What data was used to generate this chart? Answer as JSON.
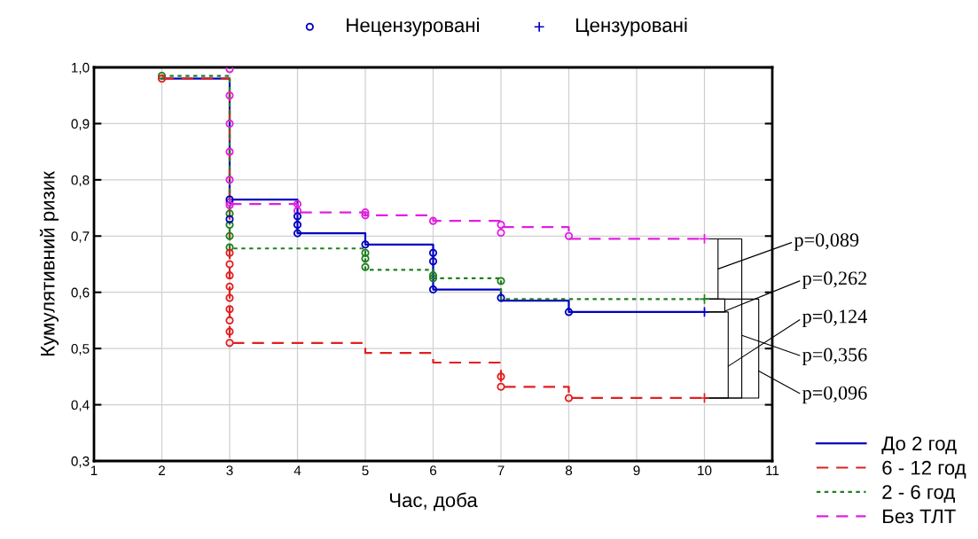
{
  "chart_data": {
    "type": "step",
    "xlabel": "Час, доба",
    "ylabel": "Кумулятивний ризик",
    "xlim": [
      1,
      11
    ],
    "xticks": [
      1,
      2,
      3,
      4,
      5,
      6,
      7,
      8,
      9,
      10,
      11
    ],
    "ylim": [
      0.3,
      1.0
    ],
    "yticks": [
      {
        "value": 0.3,
        "label": "0,3"
      },
      {
        "value": 0.4,
        "label": "0,4"
      },
      {
        "value": 0.5,
        "label": "0,5"
      },
      {
        "value": 0.6,
        "label": "0,6"
      },
      {
        "value": 0.7,
        "label": "0,7"
      },
      {
        "value": 0.8,
        "label": "0,8"
      },
      {
        "value": 0.9,
        "label": "0,9"
      },
      {
        "value": 1.0,
        "label": "1,0"
      }
    ],
    "grid": true,
    "legend": "bottom right",
    "series": [
      {
        "name": "До 2 год",
        "color": "#0000c0",
        "line_style": "solid",
        "x": [
          2,
          3,
          4,
          5,
          6,
          7,
          8,
          10
        ],
        "values": [
          0.98,
          0.765,
          0.705,
          0.685,
          0.605,
          0.585,
          0.565,
          0.565
        ]
      },
      {
        "name": "6 - 12 год",
        "color": "#e02020",
        "line_style": "dashed",
        "x": [
          2,
          3,
          5,
          6,
          7,
          8,
          10
        ],
        "values": [
          0.98,
          0.51,
          0.492,
          0.475,
          0.432,
          0.412,
          0.412
        ]
      },
      {
        "name": "2 - 6 год",
        "color": "#208020",
        "line_style": "dotted",
        "x": [
          2,
          3,
          5,
          6,
          7,
          10
        ],
        "values": [
          0.985,
          0.678,
          0.64,
          0.625,
          0.588,
          0.588
        ]
      },
      {
        "name": "Без ТЛТ",
        "color": "#e020e0",
        "line_style": "dashed",
        "x": [
          3,
          4,
          5,
          6,
          7,
          8,
          10
        ],
        "values": [
          0.757,
          0.742,
          0.737,
          0.727,
          0.716,
          0.695,
          0.695
        ]
      },
      {
        "name": "Нецензуровані",
        "type": "scatter",
        "marker": "circle",
        "color": "#0000c0",
        "x": [
          2,
          2,
          3,
          3,
          3,
          3,
          3,
          3,
          3,
          3,
          3,
          3,
          3,
          3,
          3,
          3,
          3,
          3,
          3,
          3,
          3,
          3,
          3,
          3,
          4,
          4,
          4,
          4,
          4,
          5,
          5,
          5,
          5,
          5,
          5,
          6,
          6,
          6,
          6,
          6,
          6,
          7,
          7,
          7,
          7,
          7,
          7,
          8,
          8,
          8
        ],
        "values": [
          0.985,
          0.98,
          0.997,
          0.95,
          0.9,
          0.85,
          0.8,
          0.76,
          0.74,
          0.72,
          0.7,
          0.68,
          0.67,
          0.65,
          0.63,
          0.61,
          0.59,
          0.57,
          0.55,
          0.53,
          0.51,
          0.765,
          0.755,
          0.73,
          0.757,
          0.745,
          0.735,
          0.72,
          0.705,
          0.742,
          0.737,
          0.685,
          0.67,
          0.66,
          0.645,
          0.727,
          0.67,
          0.655,
          0.605,
          0.625,
          0.63,
          0.72,
          0.706,
          0.62,
          0.59,
          0.45,
          0.432,
          0.7,
          0.565,
          0.412
        ],
        "colors": [
          "#208020",
          "#e02020",
          "#e020e0",
          "#e020e0",
          "#e020e0",
          "#e020e0",
          "#e020e0",
          "#e020e0",
          "#208020",
          "#208020",
          "#208020",
          "#208020",
          "#e02020",
          "#e02020",
          "#e02020",
          "#e02020",
          "#e02020",
          "#e02020",
          "#e02020",
          "#e02020",
          "#e02020",
          "#0000c0",
          "#e020e0",
          "#0000c0",
          "#e020e0",
          "#e020e0",
          "#0000c0",
          "#0000c0",
          "#0000c0",
          "#e020e0",
          "#e020e0",
          "#0000c0",
          "#208020",
          "#208020",
          "#208020",
          "#e020e0",
          "#0000c0",
          "#0000c0",
          "#0000c0",
          "#208020",
          "#208020",
          "#e020e0",
          "#e020e0",
          "#208020",
          "#0000c0",
          "#e02020",
          "#e02020",
          "#e020e0",
          "#0000c0",
          "#e02020"
        ]
      },
      {
        "name": "Цензуровані",
        "type": "scatter",
        "marker": "cross",
        "color": "#0000c0",
        "x": [
          10,
          10,
          10,
          10
        ],
        "values": [
          0.565,
          0.412,
          0.588,
          0.695
        ],
        "colors": [
          "#0000c0",
          "#e02020",
          "#208020",
          "#e020e0"
        ]
      }
    ],
    "annotations": [
      "p=0,089",
      "p=0,262",
      "p=0,124",
      "p=0,356",
      "p=0,096"
    ]
  }
}
